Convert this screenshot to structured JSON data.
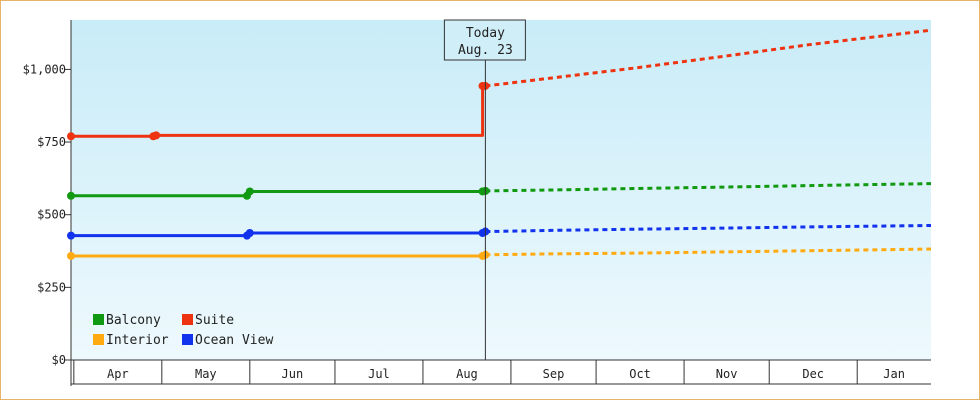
{
  "chart_data": {
    "type": "line",
    "title": "",
    "xlabel": "",
    "ylabel": "",
    "ylim": [
      0,
      1170
    ],
    "y_ticks": [
      0,
      250,
      500,
      750,
      1000
    ],
    "y_tick_labels": [
      "$0",
      "$250",
      "$500",
      "$750",
      "$1,000"
    ],
    "x_axis_start": "2023-03-30",
    "x_axis_end": "2024-01-27",
    "months": [
      {
        "label": "Apr",
        "start": "2023-03-31",
        "end": "2023-05-01"
      },
      {
        "label": "May",
        "start": "2023-05-01",
        "end": "2023-06-01"
      },
      {
        "label": "Jun",
        "start": "2023-06-01",
        "end": "2023-07-01"
      },
      {
        "label": "Jul",
        "start": "2023-07-01",
        "end": "2023-08-01"
      },
      {
        "label": "Aug",
        "start": "2023-08-01",
        "end": "2023-09-01"
      },
      {
        "label": "Sep",
        "start": "2023-09-01",
        "end": "2023-10-01"
      },
      {
        "label": "Oct",
        "start": "2023-10-01",
        "end": "2023-11-01"
      },
      {
        "label": "Nov",
        "start": "2023-11-01",
        "end": "2023-12-01"
      },
      {
        "label": "Dec",
        "start": "2023-12-01",
        "end": "2024-01-01"
      },
      {
        "label": "Jan",
        "start": "2024-01-01",
        "end": "2024-01-27"
      }
    ],
    "today": {
      "date": "2023-08-23",
      "line1": "Today",
      "line2": "Aug. 23"
    },
    "legend_position": "bottom-left",
    "grid": false,
    "series": [
      {
        "name": "Balcony",
        "color": "#119911",
        "history": [
          [
            "2023-03-30",
            565
          ],
          [
            "2023-05-31",
            565
          ],
          [
            "2023-06-01",
            580
          ],
          [
            "2023-08-22",
            580
          ],
          [
            "2023-08-23",
            582
          ]
        ],
        "forecast": [
          [
            "2023-08-23",
            582
          ],
          [
            "2023-09-15",
            585
          ],
          [
            "2023-10-15",
            590
          ],
          [
            "2023-11-15",
            595
          ],
          [
            "2023-12-15",
            600
          ],
          [
            "2024-01-27",
            607
          ]
        ],
        "markers": [
          "2023-03-30",
          "2023-05-31",
          "2023-06-01",
          "2023-08-22",
          "2023-08-23"
        ]
      },
      {
        "name": "Suite",
        "color": "#ee3311",
        "history": [
          [
            "2023-03-30",
            770
          ],
          [
            "2023-04-28",
            770
          ],
          [
            "2023-04-29",
            773
          ],
          [
            "2023-08-22",
            773
          ],
          [
            "2023-08-22",
            943
          ],
          [
            "2023-08-23",
            943
          ]
        ],
        "forecast": [
          [
            "2023-08-23",
            943
          ],
          [
            "2023-09-15",
            970
          ],
          [
            "2023-10-15",
            1005
          ],
          [
            "2023-11-15",
            1045
          ],
          [
            "2023-12-15",
            1085
          ],
          [
            "2024-01-27",
            1135
          ]
        ],
        "markers": [
          "2023-03-30",
          "2023-04-28",
          "2023-04-29",
          "2023-08-22",
          "2023-08-23"
        ]
      },
      {
        "name": "Interior",
        "color": "#ffaa11",
        "history": [
          [
            "2023-03-30",
            358
          ],
          [
            "2023-08-22",
            358
          ],
          [
            "2023-08-23",
            362
          ]
        ],
        "forecast": [
          [
            "2023-08-23",
            362
          ],
          [
            "2023-09-15",
            365
          ],
          [
            "2023-10-15",
            368
          ],
          [
            "2023-11-15",
            372
          ],
          [
            "2023-12-15",
            376
          ],
          [
            "2024-01-27",
            382
          ]
        ],
        "markers": [
          "2023-03-30",
          "2023-08-22",
          "2023-08-23"
        ]
      },
      {
        "name": "Ocean View",
        "color": "#1133ee",
        "history": [
          [
            "2023-03-30",
            428
          ],
          [
            "2023-05-31",
            428
          ],
          [
            "2023-06-01",
            437
          ],
          [
            "2023-08-22",
            437
          ],
          [
            "2023-08-23",
            442
          ]
        ],
        "forecast": [
          [
            "2023-08-23",
            442
          ],
          [
            "2023-09-15",
            446
          ],
          [
            "2023-10-15",
            450
          ],
          [
            "2023-11-15",
            454
          ],
          [
            "2023-12-15",
            458
          ],
          [
            "2024-01-27",
            463
          ]
        ],
        "markers": [
          "2023-03-30",
          "2023-05-31",
          "2023-06-01",
          "2023-08-22",
          "2023-08-23"
        ]
      }
    ]
  }
}
